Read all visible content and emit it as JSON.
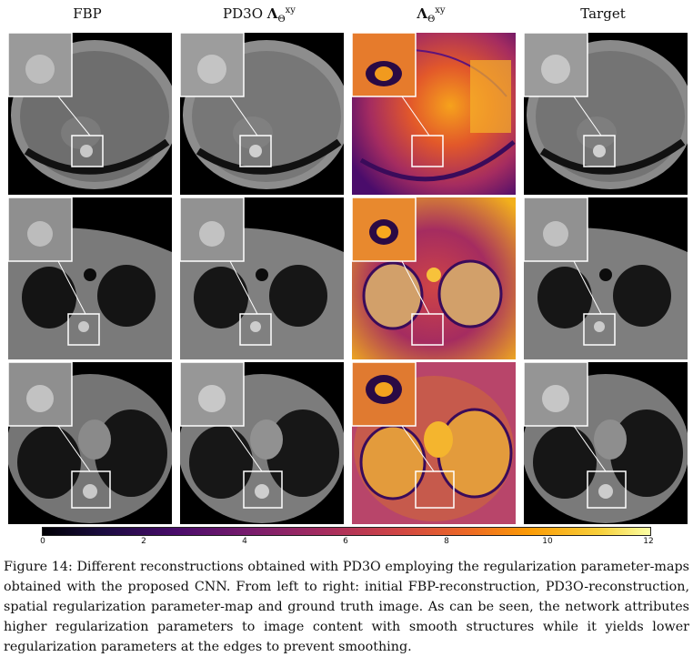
{
  "columns": [
    {
      "label": "FBP"
    },
    {
      "label": "PD3O",
      "symbol": "Λ",
      "sup": "xy",
      "sub": "Θ"
    },
    {
      "symbol": "Λ",
      "sub": "Θ",
      "sup": "xy"
    },
    {
      "label": "Target"
    }
  ],
  "colorbar": {
    "ticks": [
      "0",
      "2",
      "4",
      "6",
      "8",
      "10",
      "12"
    ],
    "min": 0,
    "max": 12,
    "colormap": "inferno"
  },
  "caption": "Figure 14: Different reconstructions obtained with PD3O employing the regularization parameter-maps obtained with the proposed CNN. From left to right: initial FBP-reconstruction, PD3O-reconstruction, spatial regularization parameter-map and ground truth image. As can be seen, the network attributes higher regularization parameters to image content with smooth structures while it yields lower regularization parameters at the edges to prevent smoothing."
}
